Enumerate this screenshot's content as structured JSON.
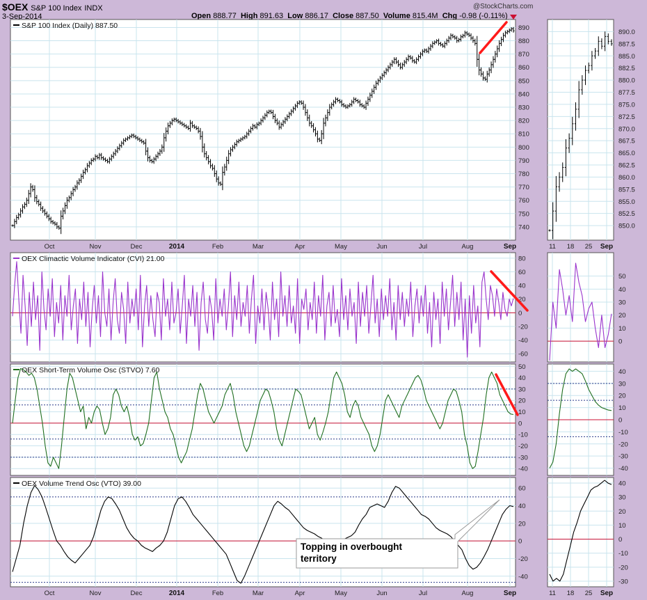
{
  "header": {
    "symbol": "$OEX",
    "name": "S&P 100 Index",
    "exchange": "INDX",
    "date": "3-Sep-2014",
    "open_label": "Open",
    "open": "888.77",
    "high_label": "High",
    "high": "891.63",
    "low_label": "Low",
    "low": "886.17",
    "close_label": "Close",
    "close": "887.50",
    "volume_label": "Volume",
    "volume": "815.4M",
    "chg_label": "Chg",
    "chg": "-0.98 (-0.11%)",
    "watermark": "@StockCharts.com"
  },
  "annotation": {
    "line1": "Topping in overbought",
    "line2": "territory"
  },
  "colors": {
    "background": "#cdb8d8",
    "price": "#000000",
    "cvi": "#9933cc",
    "stvo": "#1f6e1f",
    "vto": "#000000",
    "zero_line": "#cc1133",
    "trend_marker": "#ff1a1a",
    "grid": "#c9e4ee"
  },
  "chart_data": [
    {
      "id": "price",
      "type": "ohlc",
      "title": "S&P 100 Index (Daily) 887.50",
      "x_labels": [
        "Oct",
        "Nov",
        "Dec",
        "2014",
        "Feb",
        "Mar",
        "Apr",
        "May",
        "Jun",
        "Jul",
        "Aug",
        "Sep"
      ],
      "ylim": [
        730,
        896
      ],
      "yticks": [
        740,
        750,
        760,
        770,
        780,
        790,
        800,
        810,
        820,
        830,
        840,
        850,
        860,
        870,
        880,
        890
      ],
      "closes": [
        741,
        744,
        747,
        749,
        752,
        755,
        757,
        760,
        765,
        770,
        768,
        762,
        759,
        757,
        754,
        752,
        750,
        748,
        746,
        744,
        743,
        742,
        740,
        739,
        748,
        752,
        756,
        760,
        762,
        765,
        768,
        770,
        773,
        775,
        778,
        781,
        783,
        786,
        788,
        790,
        791,
        793,
        792,
        794,
        792,
        791,
        790,
        789,
        791,
        793,
        795,
        797,
        799,
        801,
        803,
        805,
        806,
        807,
        808,
        809,
        808,
        807,
        806,
        805,
        804,
        803,
        797,
        792,
        790,
        789,
        791,
        793,
        795,
        797,
        800,
        807,
        812,
        816,
        818,
        820,
        821,
        820,
        819,
        818,
        817,
        816,
        815,
        814,
        818,
        816,
        815,
        814,
        812,
        808,
        800,
        795,
        792,
        789,
        786,
        784,
        780,
        776,
        773,
        772,
        781,
        785,
        790,
        795,
        798,
        800,
        802,
        804,
        805,
        806,
        807,
        808,
        810,
        812,
        814,
        816,
        815,
        817,
        818,
        820,
        822,
        824,
        826,
        827,
        826,
        823,
        820,
        818,
        815,
        817,
        819,
        821,
        823,
        825,
        827,
        829,
        831,
        833,
        834,
        833,
        830,
        826,
        822,
        818,
        816,
        813,
        810,
        806,
        805,
        810,
        818,
        822,
        826,
        830,
        832,
        834,
        836,
        835,
        834,
        832,
        831,
        830,
        831,
        832,
        834,
        836,
        835,
        834,
        832,
        831,
        830,
        833,
        836,
        839,
        842,
        845,
        848,
        850,
        852,
        854,
        856,
        858,
        860,
        862,
        864,
        866,
        864,
        862,
        860,
        862,
        864,
        866,
        868,
        867,
        865,
        864,
        866,
        868,
        870,
        872,
        873,
        872,
        874,
        876,
        878,
        879,
        880,
        878,
        877,
        876,
        878,
        880,
        882,
        884,
        883,
        882,
        880,
        881,
        883,
        884,
        886,
        885,
        884,
        882,
        880,
        878,
        866,
        858,
        855,
        852,
        851,
        855,
        858,
        862,
        866,
        870,
        874,
        878,
        881,
        884,
        886,
        887,
        888,
        889,
        887.5
      ]
    },
    {
      "id": "cvi",
      "type": "line",
      "title": "OEX Climactic Volume Indicator (CVI) 21.00",
      "x_labels": [],
      "ylim": [
        -72,
        88
      ],
      "yticks": [
        -60,
        -40,
        -20,
        0,
        20,
        40,
        60,
        80
      ],
      "values": [
        -5,
        40,
        75,
        20,
        -30,
        55,
        10,
        -48,
        30,
        -20,
        45,
        -10,
        25,
        -55,
        60,
        5,
        -25,
        35,
        -5,
        50,
        -35,
        15,
        -15,
        40,
        -40,
        25,
        -5,
        55,
        -25,
        10,
        35,
        -45,
        20,
        -10,
        45,
        -20,
        30,
        -50,
        5,
        40,
        -15,
        25,
        -35,
        60,
        0,
        -20,
        35,
        -40,
        15,
        50,
        -10,
        -30,
        30,
        5,
        -45,
        45,
        -15,
        20,
        -5,
        35,
        -25,
        55,
        -50,
        10,
        40,
        -20,
        25,
        -10,
        -35,
        30,
        15,
        -40,
        50,
        -5,
        20,
        -25,
        45,
        -15,
        0,
        35,
        -30,
        10,
        55,
        -45,
        20,
        -5,
        40,
        -20,
        30,
        -55,
        15,
        45,
        -10,
        -30,
        25,
        5,
        -40,
        50,
        -15,
        20,
        -5,
        35,
        -25,
        10,
        60,
        -35,
        25,
        -10,
        45,
        -20,
        15,
        -5,
        40,
        -30,
        20,
        55,
        -45,
        10,
        -15,
        35,
        -25,
        30,
        5,
        -40,
        45,
        -10,
        20,
        -35,
        60,
        -5,
        25,
        -20,
        40,
        -15,
        10,
        -30,
        50,
        -45,
        20,
        5,
        35,
        -25,
        15,
        -10,
        45,
        -30,
        25,
        -5,
        55,
        -40,
        10,
        30,
        -20,
        40,
        -15,
        5,
        -35,
        50,
        -10,
        25,
        -25,
        35,
        -5,
        15,
        -45,
        45,
        -20,
        30,
        -5,
        40,
        -30,
        10,
        55,
        -15,
        20,
        -35,
        35,
        -10,
        25,
        -5,
        50,
        -25,
        15,
        -40,
        40,
        -10,
        30,
        -20,
        20,
        -5,
        45,
        -35,
        10,
        35,
        -15,
        25,
        -5,
        40,
        -30,
        15,
        -50,
        30,
        -10,
        20,
        -45,
        45,
        -5,
        35,
        -25,
        15,
        55,
        -20,
        30,
        -10,
        45,
        -40,
        20,
        -65,
        25,
        -30,
        40,
        -15,
        10,
        -50,
        45,
        60,
        20,
        -10,
        40,
        25,
        -5,
        35,
        15,
        -10,
        30,
        5,
        -5,
        20,
        10,
        21
      ]
    },
    {
      "id": "stvo",
      "type": "line",
      "title": "OEX Short-Term Volume Osc (STVO) 7.60",
      "x_labels": [],
      "ylim": [
        -46,
        52
      ],
      "yticks": [
        -40,
        -30,
        -20,
        -10,
        0,
        10,
        20,
        30,
        40,
        50
      ],
      "values": [
        0,
        20,
        40,
        48,
        47,
        45,
        42,
        44,
        40,
        30,
        15,
        0,
        -20,
        -35,
        -38,
        -30,
        -35,
        -40,
        -20,
        5,
        30,
        44,
        40,
        30,
        20,
        10,
        15,
        -5,
        5,
        0,
        10,
        15,
        12,
        0,
        -10,
        -5,
        5,
        25,
        30,
        25,
        15,
        10,
        15,
        5,
        -10,
        -15,
        -12,
        -20,
        -18,
        -10,
        0,
        20,
        40,
        45,
        30,
        20,
        10,
        5,
        -5,
        -10,
        -20,
        -30,
        -35,
        -30,
        -25,
        -15,
        -5,
        10,
        25,
        35,
        30,
        20,
        10,
        5,
        0,
        5,
        10,
        15,
        25,
        30,
        35,
        25,
        10,
        0,
        -10,
        -20,
        -25,
        -20,
        -10,
        0,
        10,
        20,
        25,
        30,
        28,
        20,
        10,
        -5,
        -15,
        -20,
        -10,
        0,
        10,
        20,
        30,
        28,
        25,
        15,
        5,
        -5,
        0,
        5,
        -10,
        -15,
        -8,
        0,
        10,
        25,
        40,
        45,
        40,
        35,
        25,
        10,
        5,
        15,
        20,
        15,
        5,
        0,
        -5,
        -10,
        -20,
        -25,
        -20,
        -10,
        5,
        20,
        25,
        20,
        15,
        10,
        5,
        15,
        20,
        25,
        30,
        35,
        40,
        42,
        38,
        30,
        20,
        15,
        10,
        5,
        0,
        -5,
        0,
        10,
        20,
        25,
        30,
        28,
        20,
        10,
        -10,
        -20,
        -35,
        -40,
        -38,
        -25,
        -10,
        5,
        25,
        40,
        45,
        40,
        35,
        25,
        20,
        15,
        10,
        8,
        7.6
      ]
    },
    {
      "id": "vto",
      "type": "line",
      "title": "OEX Volume Trend Osc (VTO) 39.00",
      "x_labels": [
        "Oct",
        "Nov",
        "Dec",
        "2014",
        "Feb",
        "Mar",
        "Apr",
        "May",
        "Jun",
        "Jul",
        "Aug",
        "Sep"
      ],
      "ylim": [
        -52,
        72
      ],
      "yticks": [
        -40,
        -20,
        0,
        20,
        40,
        60
      ],
      "values": [
        -35,
        -20,
        -5,
        20,
        40,
        55,
        63,
        58,
        50,
        38,
        25,
        12,
        0,
        -5,
        -12,
        -18,
        -22,
        -25,
        -20,
        -15,
        -10,
        -5,
        5,
        20,
        35,
        45,
        50,
        48,
        42,
        35,
        25,
        15,
        8,
        3,
        0,
        -5,
        -8,
        -10,
        -12,
        -8,
        -5,
        0,
        10,
        25,
        40,
        48,
        50,
        45,
        38,
        30,
        25,
        20,
        15,
        10,
        5,
        0,
        -5,
        -10,
        -15,
        -25,
        -35,
        -45,
        -48,
        -40,
        -30,
        -20,
        -10,
        0,
        10,
        20,
        30,
        40,
        45,
        42,
        38,
        35,
        30,
        25,
        20,
        15,
        12,
        10,
        8,
        5,
        3,
        0,
        -2,
        -3,
        -1,
        0,
        2,
        4,
        6,
        10,
        18,
        25,
        30,
        38,
        40,
        42,
        40,
        38,
        45,
        55,
        62,
        60,
        55,
        50,
        45,
        40,
        35,
        30,
        28,
        25,
        20,
        15,
        12,
        10,
        8,
        5,
        0,
        -5,
        -10,
        -20,
        -28,
        -32,
        -30,
        -25,
        -18,
        -10,
        0,
        10,
        20,
        30,
        36,
        40,
        39
      ]
    },
    {
      "id": "price_zoom",
      "type": "ohlc",
      "title": "",
      "x_labels": [
        "11",
        "18",
        "25",
        "Sep"
      ],
      "ylim": [
        847,
        892.5
      ],
      "yticks": [
        850.0,
        852.5,
        855.0,
        857.5,
        860.0,
        862.5,
        865.0,
        867.5,
        870.0,
        872.5,
        875.0,
        877.5,
        880.0,
        882.5,
        885.0,
        887.5,
        890.0
      ],
      "closes": [
        849,
        853,
        858,
        860,
        862,
        866,
        868,
        871,
        874,
        878,
        880,
        882,
        883,
        885,
        886,
        888,
        887,
        889,
        888,
        887.5
      ]
    },
    {
      "id": "cvi_zoom",
      "type": "line",
      "title": "",
      "x_labels": [],
      "ylim": [
        -16,
        68
      ],
      "yticks": [
        0,
        10,
        20,
        30,
        40,
        50
      ],
      "values": [
        -15,
        30,
        10,
        55,
        40,
        20,
        35,
        15,
        60,
        45,
        35,
        15,
        25,
        30,
        10,
        -5,
        20,
        -5,
        5,
        21
      ]
    },
    {
      "id": "stvo_zoom",
      "type": "line",
      "title": "",
      "x_labels": [],
      "ylim": [
        -46,
        46
      ],
      "yticks": [
        -40,
        -30,
        -20,
        -10,
        0,
        10,
        20,
        30,
        40
      ],
      "values": [
        -40,
        -35,
        -20,
        5,
        25,
        38,
        42,
        40,
        42,
        40,
        38,
        32,
        25,
        20,
        15,
        12,
        10,
        9,
        8,
        7.6
      ]
    },
    {
      "id": "vto_zoom",
      "type": "line",
      "title": "",
      "x_labels": [
        "11",
        "18",
        "25",
        "Sep"
      ],
      "ylim": [
        -34,
        44
      ],
      "yticks": [
        -30,
        -20,
        -10,
        0,
        10,
        20,
        30,
        40
      ],
      "values": [
        -25,
        -30,
        -28,
        -30,
        -25,
        -15,
        -5,
        5,
        12,
        20,
        25,
        30,
        35,
        37,
        38,
        40,
        42,
        40,
        39
      ]
    }
  ]
}
